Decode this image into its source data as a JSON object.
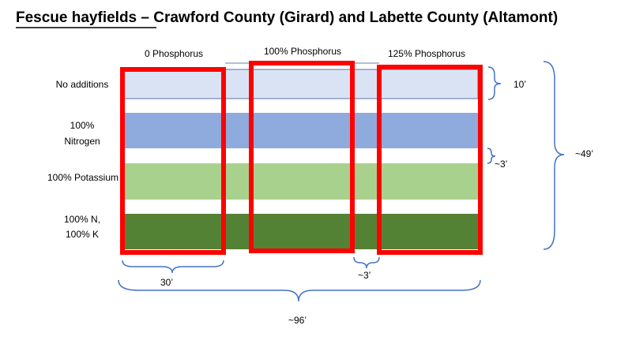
{
  "title": {
    "underlined": "Fescue hayfields",
    "rest": " – Crawford County (Girard) and Labette County (Altamont)"
  },
  "columns": [
    "0 Phosphorus",
    "100% Phosphorus",
    "125% Phosphorus"
  ],
  "rows": [
    {
      "lines": [
        "No additions"
      ]
    },
    {
      "lines": [
        "100%",
        "Nitrogen"
      ]
    },
    {
      "lines": [
        "100% Potassium"
      ]
    },
    {
      "lines": [
        "100% N,",
        "100% K"
      ]
    }
  ],
  "dimensions": {
    "band_width": "10’",
    "band_gap": "~3’",
    "total_height": "~49’",
    "plot_width": "30’",
    "plot_gap": "~3’",
    "total_width": "~96’"
  }
}
